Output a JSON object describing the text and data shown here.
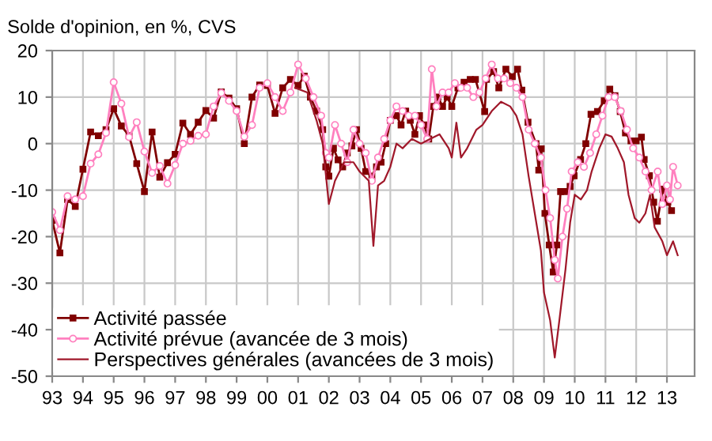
{
  "chart_data": {
    "type": "line",
    "title": "Solde d'opinion, en %, CVS",
    "xlim": [
      1993,
      2013.9
    ],
    "ylim": [
      -50,
      20
    ],
    "yticks": [
      -50,
      -40,
      -30,
      -20,
      -10,
      0,
      10,
      20
    ],
    "xticks": [
      {
        "value": 1993,
        "label": "93"
      },
      {
        "value": 1994,
        "label": "94"
      },
      {
        "value": 1995,
        "label": "95"
      },
      {
        "value": 1996,
        "label": "96"
      },
      {
        "value": 1997,
        "label": "97"
      },
      {
        "value": 1998,
        "label": "98"
      },
      {
        "value": 1999,
        "label": "99"
      },
      {
        "value": 2000,
        "label": "00"
      },
      {
        "value": 2001,
        "label": "01"
      },
      {
        "value": 2002,
        "label": "02"
      },
      {
        "value": 2003,
        "label": "03"
      },
      {
        "value": 2004,
        "label": "04"
      },
      {
        "value": 2005,
        "label": "05"
      },
      {
        "value": 2006,
        "label": "06"
      },
      {
        "value": 2007,
        "label": "07"
      },
      {
        "value": 2008,
        "label": "08"
      },
      {
        "value": 2009,
        "label": "09"
      },
      {
        "value": 2010,
        "label": "10"
      },
      {
        "value": 2011,
        "label": "11"
      },
      {
        "value": 2012,
        "label": "12"
      },
      {
        "value": 2013,
        "label": "13"
      }
    ],
    "grid": true,
    "legend": "bottom left",
    "series": [
      {
        "name": "Activité passée",
        "color": "#800000",
        "marker": "square",
        "x": [
          1993.0,
          1993.25,
          1993.5,
          1993.75,
          1994.0,
          1994.25,
          1994.5,
          1994.75,
          1995.0,
          1995.25,
          1995.5,
          1995.75,
          1996.0,
          1996.25,
          1996.5,
          1996.75,
          1997.0,
          1997.25,
          1997.5,
          1997.75,
          1998.0,
          1998.25,
          1998.5,
          1998.75,
          1999.0,
          1999.25,
          1999.5,
          1999.75,
          2000.0,
          2000.25,
          2000.5,
          2000.75,
          2001.0,
          2001.2,
          2001.4,
          2001.6,
          2001.8,
          2001.9,
          2002.0,
          2002.15,
          2002.3,
          2002.45,
          2002.6,
          2002.75,
          2002.9,
          2003.05,
          2003.2,
          2003.4,
          2003.55,
          2003.7,
          2003.85,
          2004.0,
          2004.2,
          2004.35,
          2004.5,
          2004.65,
          2004.8,
          2004.95,
          2005.1,
          2005.25,
          2005.4,
          2005.55,
          2005.7,
          2005.85,
          2006.0,
          2006.2,
          2006.4,
          2006.6,
          2006.77,
          2007.07,
          2007.13,
          2007.36,
          2007.53,
          2007.76,
          2007.97,
          2008.14,
          2008.28,
          2008.48,
          2008.74,
          2008.83,
          2008.91,
          2009.03,
          2009.17,
          2009.3,
          2009.42,
          2009.54,
          2009.68,
          2009.85,
          2009.98,
          2010.19,
          2010.36,
          2010.53,
          2010.74,
          2010.96,
          2011.14,
          2011.31,
          2011.48,
          2011.65,
          2011.83,
          2012.0,
          2012.17,
          2012.26,
          2012.43,
          2012.57,
          2012.69,
          2012.86,
          2013.03,
          2013.15
        ],
        "values": [
          -16.5,
          -23.5,
          -12,
          -13.5,
          -5.5,
          2.5,
          1.7,
          3,
          7.5,
          3.8,
          1.7,
          -4.3,
          -10.3,
          2.5,
          -7.2,
          -4.1,
          -2.3,
          4.4,
          2,
          4.6,
          7.1,
          5.5,
          11.1,
          9.8,
          7.5,
          0,
          10,
          12.6,
          12.5,
          6.5,
          12,
          13.8,
          12.5,
          14.5,
          10,
          7,
          3,
          -5,
          -7,
          -1,
          -3.5,
          -5,
          -2,
          -0.5,
          3,
          -1,
          -6,
          -7,
          -5,
          -4,
          0,
          5,
          6,
          4,
          7,
          5,
          2,
          6,
          4,
          1,
          8,
          10,
          8,
          10,
          8,
          12,
          13.2,
          13.8,
          13.8,
          6.9,
          13.8,
          15.5,
          12,
          16,
          14.4,
          16,
          11.5,
          4.6,
          0,
          -5.7,
          -1.1,
          -15,
          -21.8,
          -27.6,
          -21.8,
          -10.3,
          -10.3,
          -9.2,
          -6.9,
          -3.4,
          0,
          6.3,
          6.9,
          9.2,
          11.7,
          10.3,
          6.9,
          2.3,
          0.6,
          0.6,
          1.4,
          -3.4,
          -6.9,
          -12.6,
          -16.7,
          -9.8,
          -12.6,
          -14.4
        ]
      },
      {
        "name": "Activité prévue (avancée de 3 mois)",
        "color": "#ff80bf",
        "marker": "circle",
        "x": [
          1993.0,
          1993.25,
          1993.5,
          1993.75,
          1994.0,
          1994.25,
          1994.5,
          1994.75,
          1995.0,
          1995.25,
          1995.5,
          1995.75,
          1996.0,
          1996.25,
          1996.5,
          1996.75,
          1997.0,
          1997.25,
          1997.5,
          1997.75,
          1998.0,
          1998.25,
          1998.5,
          1998.75,
          1999.0,
          1999.25,
          1999.5,
          1999.75,
          2000.0,
          2000.25,
          2000.5,
          2000.75,
          2001.0,
          2001.25,
          2001.5,
          2001.75,
          2001.9,
          2002.0,
          2002.2,
          2002.4,
          2002.6,
          2002.8,
          2003.0,
          2003.2,
          2003.4,
          2003.6,
          2003.8,
          2004.0,
          2004.2,
          2004.4,
          2004.6,
          2004.8,
          2005.0,
          2005.2,
          2005.35,
          2005.5,
          2005.7,
          2005.9,
          2006.1,
          2006.3,
          2006.5,
          2006.7,
          2006.9,
          2007.1,
          2007.3,
          2007.5,
          2007.7,
          2007.9,
          2008.1,
          2008.3,
          2008.5,
          2008.7,
          2008.9,
          2009.05,
          2009.2,
          2009.35,
          2009.45,
          2009.6,
          2009.75,
          2009.9,
          2010.1,
          2010.3,
          2010.5,
          2010.7,
          2010.9,
          2011.1,
          2011.3,
          2011.5,
          2011.7,
          2011.9,
          2012.1,
          2012.3,
          2012.5,
          2012.7,
          2012.85,
          2013.0,
          2013.1,
          2013.2,
          2013.35
        ],
        "values": [
          -14.7,
          -18.6,
          -11.3,
          -12,
          -11.3,
          -4.3,
          -2.3,
          2.3,
          13.2,
          8.6,
          1.4,
          4.6,
          -1.7,
          -6.3,
          -4.8,
          -8.6,
          -4.6,
          0,
          0.6,
          1.7,
          2,
          8,
          10.9,
          9.2,
          7,
          1.5,
          4,
          12,
          13,
          10,
          7,
          11,
          17,
          14,
          10,
          6,
          -2,
          -3,
          4,
          0,
          -4,
          3,
          0,
          -2,
          -8,
          -3,
          1,
          5,
          8,
          7,
          6,
          6,
          4,
          1,
          16,
          8,
          11,
          11,
          13,
          12,
          12,
          10,
          11,
          14,
          17,
          14,
          14,
          13,
          12,
          10,
          3,
          0,
          -3,
          -10,
          -16,
          -25,
          -29,
          -20,
          -14,
          -6,
          -4,
          -5,
          -2,
          2,
          6,
          10,
          10,
          7,
          3,
          -1,
          -3,
          -6,
          -10,
          -6,
          -13,
          -9,
          -12,
          -5,
          -9
        ]
      },
      {
        "name": "Perspectives générales (avancées de 3 mois)",
        "color": "#a0182a",
        "marker": "none",
        "x": [
          2000.9,
          2001.3,
          2001.6,
          2001.8,
          2002.0,
          2002.2,
          2002.5,
          2002.8,
          2003.0,
          2003.3,
          2003.45,
          2003.6,
          2003.8,
          2004.0,
          2004.2,
          2004.4,
          2004.7,
          2005.0,
          2005.3,
          2005.6,
          2005.9,
          2006.0,
          2006.15,
          2006.3,
          2006.5,
          2006.8,
          2007.0,
          2007.3,
          2007.6,
          2007.9,
          2008.1,
          2008.3,
          2008.5,
          2008.7,
          2008.9,
          2009.0,
          2009.2,
          2009.35,
          2009.5,
          2009.7,
          2009.85,
          2010.0,
          2010.2,
          2010.4,
          2010.55,
          2010.8,
          2011.0,
          2011.2,
          2011.4,
          2011.6,
          2011.75,
          2011.95,
          2012.1,
          2012.3,
          2012.45,
          2012.6,
          2012.85,
          2013.0,
          2013.2,
          2013.35
        ],
        "values": [
          12,
          11,
          5,
          0,
          -13,
          -8,
          -4,
          -4,
          -6,
          -8,
          -22,
          -9,
          -8,
          -5,
          0,
          -1,
          1,
          0,
          1,
          2,
          -1,
          -3,
          4.5,
          -3,
          -1,
          3,
          4,
          7,
          9,
          8,
          6,
          2,
          -7,
          -15,
          -23,
          -32,
          -38,
          -46,
          -38,
          -27,
          -17,
          -11,
          -12,
          -10,
          -6,
          -1,
          2,
          1.5,
          -1,
          -4,
          -11,
          -16,
          -17,
          -15,
          -11,
          -18,
          -21,
          -24,
          -21,
          -24
        ]
      }
    ]
  }
}
